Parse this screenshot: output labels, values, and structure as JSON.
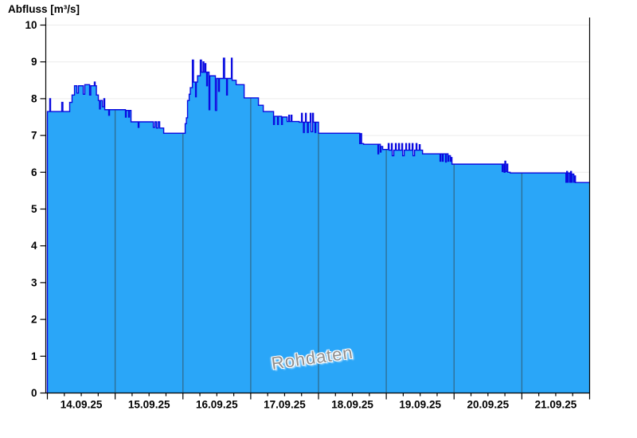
{
  "page": {
    "title_label": "Abfluss [m³/s]",
    "watermark": "Rohdaten"
  },
  "colors": {
    "fill": "#2aa6f8",
    "line": "#0a0ae0",
    "day_separator": "#2e7097",
    "grid": "#ececec",
    "axis": "#000000",
    "tick_label": "#000000",
    "watermark": "#8f8f8f",
    "background": "#ffffff"
  },
  "chart_data": {
    "type": "area",
    "title": "Abfluss [m³/s]",
    "ylabel": "Abfluss [m³/s]",
    "unit": "m³/s",
    "ylim": [
      0,
      10
    ],
    "yticks": [
      0,
      1,
      2,
      3,
      4,
      5,
      6,
      7,
      8,
      9,
      10
    ],
    "grid": "horizontal-light",
    "legend_position": "none",
    "x_axis": {
      "categories": [
        "14.09.25",
        "15.09.25",
        "16.09.25",
        "17.09.25",
        "18.09.25",
        "19.09.25",
        "20.09.25",
        "21.09.25"
      ],
      "range_days": [
        0,
        8
      ],
      "minor_ticks_per_day": 4,
      "day_separator_lines": [
        1,
        2,
        3,
        4,
        5,
        6,
        7
      ]
    },
    "series": [
      {
        "name": "Rohdaten",
        "steps": [
          [
            0.0,
            7.65
          ],
          [
            0.035,
            8.0
          ],
          [
            0.047,
            7.65
          ],
          [
            0.212,
            7.9
          ],
          [
            0.229,
            7.65
          ],
          [
            0.329,
            7.9
          ],
          [
            0.364,
            8.1
          ],
          [
            0.4,
            8.35
          ],
          [
            0.435,
            8.15
          ],
          [
            0.458,
            8.35
          ],
          [
            0.529,
            8.12
          ],
          [
            0.552,
            8.38
          ],
          [
            0.623,
            8.1
          ],
          [
            0.64,
            8.35
          ],
          [
            0.693,
            8.45
          ],
          [
            0.705,
            8.35
          ],
          [
            0.723,
            8.1
          ],
          [
            0.752,
            7.95
          ],
          [
            0.77,
            7.72
          ],
          [
            0.781,
            7.95
          ],
          [
            0.811,
            7.78
          ],
          [
            0.834,
            8.0
          ],
          [
            0.846,
            7.7
          ],
          [
            0.905,
            7.55
          ],
          [
            0.917,
            7.7
          ],
          [
            1.152,
            7.5
          ],
          [
            1.163,
            7.68
          ],
          [
            1.199,
            7.5
          ],
          [
            1.21,
            7.68
          ],
          [
            1.234,
            7.37
          ],
          [
            1.34,
            7.22
          ],
          [
            1.351,
            7.37
          ],
          [
            1.563,
            7.22
          ],
          [
            1.586,
            7.37
          ],
          [
            1.61,
            7.2
          ],
          [
            1.633,
            7.37
          ],
          [
            1.657,
            7.2
          ],
          [
            1.716,
            7.06
          ],
          [
            2.033,
            7.32
          ],
          [
            2.051,
            7.48
          ],
          [
            2.068,
            7.95
          ],
          [
            2.092,
            8.12
          ],
          [
            2.109,
            8.3
          ],
          [
            2.139,
            9.05
          ],
          [
            2.156,
            8.45
          ],
          [
            2.186,
            8.05
          ],
          [
            2.197,
            8.45
          ],
          [
            2.215,
            8.62
          ],
          [
            2.256,
            9.05
          ],
          [
            2.274,
            8.72
          ],
          [
            2.297,
            9.0
          ],
          [
            2.309,
            8.72
          ],
          [
            2.327,
            8.95
          ],
          [
            2.338,
            8.72
          ],
          [
            2.35,
            8.35
          ],
          [
            2.362,
            8.72
          ],
          [
            2.385,
            7.7
          ],
          [
            2.397,
            8.62
          ],
          [
            2.479,
            7.68
          ],
          [
            2.497,
            8.55
          ],
          [
            2.526,
            8.2
          ],
          [
            2.538,
            8.55
          ],
          [
            2.597,
            9.1
          ],
          [
            2.615,
            8.55
          ],
          [
            2.644,
            8.1
          ],
          [
            2.656,
            8.55
          ],
          [
            2.715,
            9.1
          ],
          [
            2.726,
            8.5
          ],
          [
            2.785,
            8.38
          ],
          [
            2.903,
            8.02
          ],
          [
            3.114,
            7.82
          ],
          [
            3.185,
            7.65
          ],
          [
            3.337,
            7.3
          ],
          [
            3.349,
            7.52
          ],
          [
            3.396,
            7.3
          ],
          [
            3.408,
            7.52
          ],
          [
            3.455,
            7.3
          ],
          [
            3.467,
            7.5
          ],
          [
            3.537,
            7.38
          ],
          [
            3.561,
            7.55
          ],
          [
            3.572,
            7.38
          ],
          [
            3.596,
            7.55
          ],
          [
            3.608,
            7.38
          ],
          [
            3.714,
            7.36
          ],
          [
            3.749,
            7.6
          ],
          [
            3.761,
            7.36
          ],
          [
            3.778,
            7.08
          ],
          [
            3.79,
            7.36
          ],
          [
            3.808,
            7.6
          ],
          [
            3.819,
            7.36
          ],
          [
            3.837,
            7.08
          ],
          [
            3.849,
            7.36
          ],
          [
            3.878,
            7.6
          ],
          [
            3.89,
            7.1
          ],
          [
            3.914,
            7.6
          ],
          [
            3.925,
            7.36
          ],
          [
            3.949,
            7.08
          ],
          [
            3.96,
            7.36
          ],
          [
            4.0,
            7.06
          ],
          [
            4.607,
            6.78
          ],
          [
            4.618,
            7.05
          ],
          [
            4.636,
            6.78
          ],
          [
            4.665,
            6.76
          ],
          [
            4.877,
            6.5
          ],
          [
            4.888,
            6.76
          ],
          [
            4.912,
            6.55
          ],
          [
            4.923,
            6.7
          ],
          [
            4.947,
            6.62
          ],
          [
            5.029,
            6.78
          ],
          [
            5.041,
            6.6
          ],
          [
            5.076,
            6.78
          ],
          [
            5.088,
            6.45
          ],
          [
            5.111,
            6.6
          ],
          [
            5.135,
            6.78
          ],
          [
            5.147,
            6.6
          ],
          [
            5.182,
            6.78
          ],
          [
            5.194,
            6.6
          ],
          [
            5.229,
            6.78
          ],
          [
            5.241,
            6.45
          ],
          [
            5.264,
            6.6
          ],
          [
            5.288,
            6.78
          ],
          [
            5.299,
            6.6
          ],
          [
            5.335,
            6.78
          ],
          [
            5.346,
            6.6
          ],
          [
            5.382,
            6.78
          ],
          [
            5.394,
            6.45
          ],
          [
            5.417,
            6.6
          ],
          [
            5.44,
            6.78
          ],
          [
            5.452,
            6.6
          ],
          [
            5.487,
            6.75
          ],
          [
            5.499,
            6.6
          ],
          [
            5.535,
            6.5
          ],
          [
            5.793,
            6.3
          ],
          [
            5.805,
            6.5
          ],
          [
            5.828,
            6.3
          ],
          [
            5.84,
            6.5
          ],
          [
            5.875,
            6.28
          ],
          [
            5.887,
            6.5
          ],
          [
            5.911,
            6.3
          ],
          [
            5.922,
            6.45
          ],
          [
            5.946,
            6.3
          ],
          [
            5.958,
            6.4
          ],
          [
            5.969,
            6.22
          ],
          [
            6.71,
            6.02
          ],
          [
            6.721,
            6.22
          ],
          [
            6.739,
            6.0
          ],
          [
            6.75,
            6.3
          ],
          [
            6.762,
            6.02
          ],
          [
            6.78,
            6.22
          ],
          [
            6.792,
            6.0
          ],
          [
            6.827,
            5.98
          ],
          [
            7.65,
            5.73
          ],
          [
            7.662,
            6.02
          ],
          [
            7.673,
            5.73
          ],
          [
            7.685,
            5.98
          ],
          [
            7.708,
            5.73
          ],
          [
            7.72,
            6.02
          ],
          [
            7.732,
            5.73
          ],
          [
            7.744,
            5.95
          ],
          [
            7.767,
            5.73
          ],
          [
            7.779,
            5.9
          ],
          [
            7.791,
            5.72
          ],
          [
            8.0,
            5.72
          ]
        ]
      }
    ]
  }
}
